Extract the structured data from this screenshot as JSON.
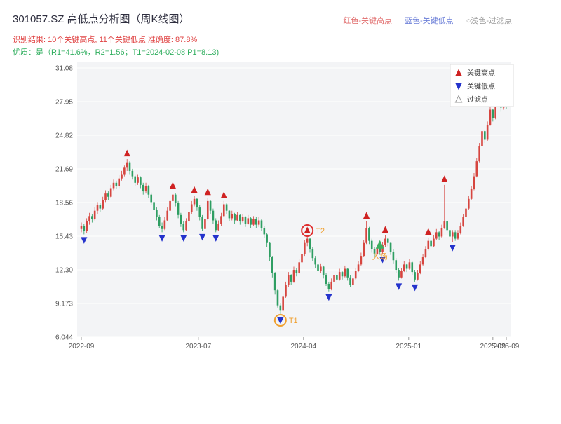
{
  "header": {
    "title": "301057.SZ 高低点分析图（周K线图）",
    "legend_right": [
      {
        "label": "红色-关键高点",
        "color": "#e06c6c"
      },
      {
        "label": "蓝色-关键低点",
        "color": "#6c7fd8"
      },
      {
        "label": "○浅色-过滤点",
        "color": "#999999"
      }
    ],
    "result_line": "识别结果: 10个关键高点, 11个关键低点  准确度: 87.8%",
    "quality_line": "优质：是（R1=41.6%，R2=1.56；T1=2024-02-08 P1=8.13)"
  },
  "chart_data": {
    "type": "candlestick",
    "symbol": "301057.SZ",
    "period": "weekly",
    "title": "301057.SZ 高低点分析图（周K线图）",
    "ylim": [
      6.044,
      31.08
    ],
    "y_ticks": [
      "31.08",
      "27.95",
      "24.82",
      "21.69",
      "18.56",
      "15.43",
      "12.30",
      "9.173",
      "6.044"
    ],
    "x_ticks": [
      {
        "label": "2022-09",
        "week": 0
      },
      {
        "label": "2023-07",
        "week": 43.5
      },
      {
        "label": "2024-04",
        "week": 82.6
      },
      {
        "label": "2025-01",
        "week": 121.7
      },
      {
        "label": "2025-09",
        "week": 153
      },
      {
        "label": "2025-09",
        "week": 158
      }
    ],
    "up_color": "#d6453f",
    "down_color": "#2e9e62",
    "key_high_color": "#cf2222",
    "key_low_color": "#2433cc",
    "grid": true,
    "legend_box": [
      {
        "label": "关键高点",
        "marker": "up-triangle",
        "color": "#cf2222"
      },
      {
        "label": "关键低点",
        "marker": "down-triangle",
        "color": "#2433cc"
      },
      {
        "label": "过滤点",
        "marker": "hollow-triangle",
        "color": "#999999"
      }
    ],
    "candles": [
      [
        16.1,
        16.7,
        15.8,
        16.4
      ],
      [
        16.4,
        16.6,
        15.6,
        15.9
      ],
      [
        15.9,
        17.1,
        15.7,
        16.8
      ],
      [
        16.8,
        17.6,
        16.5,
        17.3
      ],
      [
        17.3,
        17.5,
        16.7,
        17.0
      ],
      [
        17.0,
        18.1,
        16.9,
        17.8
      ],
      [
        17.8,
        18.6,
        17.5,
        18.3
      ],
      [
        18.3,
        18.5,
        17.7,
        18.0
      ],
      [
        18.0,
        19.1,
        17.9,
        18.8
      ],
      [
        18.8,
        19.7,
        18.6,
        19.4
      ],
      [
        19.4,
        19.6,
        18.8,
        19.1
      ],
      [
        19.1,
        20.2,
        19.0,
        19.9
      ],
      [
        19.9,
        20.7,
        19.7,
        20.4
      ],
      [
        20.4,
        20.6,
        19.8,
        20.1
      ],
      [
        20.1,
        21.1,
        19.9,
        20.8
      ],
      [
        20.8,
        21.5,
        20.6,
        21.2
      ],
      [
        21.2,
        22.0,
        21.0,
        21.8
      ],
      [
        21.8,
        22.6,
        21.5,
        22.3
      ],
      [
        22.3,
        22.4,
        21.2,
        21.5
      ],
      [
        21.5,
        21.7,
        20.7,
        21.0
      ],
      [
        21.0,
        21.2,
        20.1,
        20.4
      ],
      [
        20.4,
        21.2,
        20.2,
        20.9
      ],
      [
        20.9,
        21.0,
        19.9,
        20.2
      ],
      [
        20.2,
        20.4,
        19.3,
        19.6
      ],
      [
        19.6,
        20.4,
        19.4,
        20.1
      ],
      [
        20.1,
        20.2,
        19.0,
        19.3
      ],
      [
        19.3,
        19.5,
        18.3,
        18.6
      ],
      [
        18.6,
        18.8,
        17.6,
        17.9
      ],
      [
        17.9,
        18.1,
        16.9,
        17.2
      ],
      [
        17.2,
        17.4,
        16.2,
        16.4
      ],
      [
        16.4,
        16.7,
        15.8,
        16.1
      ],
      [
        16.1,
        17.2,
        16.0,
        16.9
      ],
      [
        16.9,
        18.1,
        16.8,
        17.8
      ],
      [
        17.8,
        19.0,
        17.6,
        18.7
      ],
      [
        18.7,
        19.6,
        18.5,
        19.3
      ],
      [
        19.3,
        19.4,
        18.2,
        18.5
      ],
      [
        18.5,
        18.7,
        17.1,
        17.4
      ],
      [
        17.4,
        17.6,
        16.3,
        16.6
      ],
      [
        16.6,
        16.8,
        15.8,
        16.0
      ],
      [
        16.0,
        17.1,
        15.9,
        16.8
      ],
      [
        16.8,
        18.0,
        16.7,
        17.7
      ],
      [
        17.7,
        18.7,
        17.5,
        18.4
      ],
      [
        18.4,
        19.2,
        18.2,
        18.9
      ],
      [
        18.9,
        19.0,
        17.8,
        18.1
      ],
      [
        18.1,
        18.3,
        16.9,
        17.2
      ],
      [
        17.2,
        17.4,
        15.9,
        16.1
      ],
      [
        16.1,
        17.3,
        16.0,
        17.0
      ],
      [
        17.0,
        19.0,
        16.9,
        18.7
      ],
      [
        18.7,
        18.8,
        17.5,
        17.8
      ],
      [
        17.8,
        18.0,
        16.6,
        16.9
      ],
      [
        16.9,
        17.1,
        15.8,
        16.0
      ],
      [
        16.0,
        16.9,
        15.9,
        16.6
      ],
      [
        16.6,
        17.6,
        16.4,
        17.3
      ],
      [
        17.3,
        18.7,
        17.2,
        18.4
      ],
      [
        18.4,
        18.5,
        17.5,
        17.8
      ],
      [
        17.8,
        17.9,
        16.8,
        17.1
      ],
      [
        17.1,
        17.8,
        16.9,
        17.5
      ],
      [
        17.5,
        17.6,
        16.6,
        16.9
      ],
      [
        16.9,
        17.7,
        16.8,
        17.4
      ],
      [
        17.4,
        17.5,
        16.5,
        16.8
      ],
      [
        16.8,
        17.5,
        16.7,
        17.2
      ],
      [
        17.2,
        17.3,
        16.3,
        16.6
      ],
      [
        16.6,
        17.4,
        16.5,
        17.1
      ],
      [
        17.1,
        17.2,
        16.2,
        16.5
      ],
      [
        16.5,
        17.3,
        16.4,
        17.0
      ],
      [
        17.0,
        17.2,
        16.2,
        16.5
      ],
      [
        16.5,
        17.2,
        16.3,
        16.9
      ],
      [
        16.9,
        17.0,
        15.9,
        16.2
      ],
      [
        16.2,
        16.4,
        15.3,
        15.6
      ],
      [
        15.6,
        15.7,
        14.4,
        14.8
      ],
      [
        14.8,
        14.9,
        13.1,
        13.5
      ],
      [
        13.5,
        13.6,
        11.6,
        12.0
      ],
      [
        12.0,
        12.1,
        10.0,
        10.4
      ],
      [
        10.4,
        10.5,
        8.8,
        9.0
      ],
      [
        9.0,
        9.2,
        8.13,
        8.5
      ],
      [
        8.5,
        10.1,
        8.4,
        9.8
      ],
      [
        9.8,
        11.2,
        9.7,
        10.9
      ],
      [
        10.9,
        12.1,
        10.7,
        11.8
      ],
      [
        11.8,
        11.9,
        10.9,
        11.2
      ],
      [
        11.2,
        12.6,
        11.1,
        12.3
      ],
      [
        12.3,
        12.5,
        11.7,
        12.0
      ],
      [
        12.0,
        13.3,
        11.9,
        13.0
      ],
      [
        13.0,
        14.1,
        12.8,
        13.8
      ],
      [
        13.8,
        15.1,
        13.6,
        14.8
      ],
      [
        14.8,
        15.43,
        14.5,
        15.2
      ],
      [
        15.2,
        15.3,
        13.9,
        14.2
      ],
      [
        14.2,
        14.4,
        13.1,
        13.4
      ],
      [
        13.4,
        13.6,
        12.5,
        12.8
      ],
      [
        12.8,
        13.0,
        11.9,
        12.2
      ],
      [
        12.2,
        12.9,
        12.0,
        12.6
      ],
      [
        12.6,
        12.7,
        11.5,
        11.8
      ],
      [
        11.8,
        12.0,
        10.8,
        11.0
      ],
      [
        11.0,
        11.2,
        10.3,
        10.5
      ],
      [
        10.5,
        11.5,
        10.4,
        11.2
      ],
      [
        11.2,
        12.1,
        11.1,
        11.8
      ],
      [
        11.8,
        11.9,
        11.1,
        11.4
      ],
      [
        11.4,
        12.4,
        11.3,
        12.1
      ],
      [
        12.1,
        12.2,
        11.4,
        11.7
      ],
      [
        11.7,
        12.7,
        11.6,
        12.4
      ],
      [
        12.4,
        12.5,
        11.3,
        11.6
      ],
      [
        11.6,
        11.8,
        10.7,
        10.9
      ],
      [
        10.9,
        11.8,
        10.8,
        11.5
      ],
      [
        11.5,
        12.5,
        11.4,
        12.2
      ],
      [
        12.2,
        13.1,
        12.1,
        12.8
      ],
      [
        12.8,
        13.9,
        12.7,
        13.6
      ],
      [
        13.6,
        15.1,
        13.5,
        14.8
      ],
      [
        14.8,
        16.8,
        14.7,
        16.2
      ],
      [
        16.2,
        16.3,
        14.7,
        15.0
      ],
      [
        15.0,
        15.2,
        13.9,
        14.2
      ],
      [
        14.2,
        14.4,
        13.5,
        13.8
      ],
      [
        13.8,
        14.7,
        13.7,
        14.4
      ],
      [
        14.4,
        14.5,
        13.7,
        14.0
      ],
      [
        14.0,
        14.9,
        13.8,
        14.6
      ],
      [
        14.6,
        15.5,
        14.4,
        15.2
      ],
      [
        15.2,
        15.3,
        14.5,
        14.8
      ],
      [
        14.8,
        14.9,
        13.7,
        14.0
      ],
      [
        14.0,
        14.2,
        12.9,
        13.2
      ],
      [
        13.2,
        13.4,
        12.0,
        12.3
      ],
      [
        12.3,
        12.5,
        11.3,
        11.6
      ],
      [
        11.6,
        12.5,
        11.5,
        12.2
      ],
      [
        12.2,
        13.1,
        12.1,
        12.8
      ],
      [
        12.8,
        12.9,
        12.1,
        12.4
      ],
      [
        12.4,
        13.3,
        12.3,
        13.0
      ],
      [
        13.0,
        13.1,
        11.8,
        12.1
      ],
      [
        12.1,
        12.3,
        11.2,
        11.4
      ],
      [
        11.4,
        12.3,
        11.3,
        12.0
      ],
      [
        12.0,
        13.1,
        11.9,
        12.8
      ],
      [
        12.8,
        13.8,
        12.7,
        13.5
      ],
      [
        13.5,
        14.5,
        13.4,
        14.2
      ],
      [
        14.2,
        15.3,
        14.1,
        15.0
      ],
      [
        15.0,
        15.1,
        14.2,
        14.5
      ],
      [
        14.5,
        15.5,
        14.4,
        15.2
      ],
      [
        15.2,
        16.1,
        15.1,
        15.8
      ],
      [
        15.8,
        15.9,
        15.1,
        15.4
      ],
      [
        15.4,
        16.5,
        15.3,
        16.2
      ],
      [
        16.2,
        20.2,
        16.1,
        16.8
      ],
      [
        16.8,
        16.9,
        15.7,
        16.0
      ],
      [
        16.0,
        16.1,
        15.1,
        15.4
      ],
      [
        15.4,
        16.0,
        14.9,
        15.8
      ],
      [
        15.8,
        16.0,
        15.0,
        15.2
      ],
      [
        15.2,
        16.0,
        15.1,
        15.7
      ],
      [
        15.7,
        16.7,
        15.6,
        16.4
      ],
      [
        16.4,
        17.5,
        16.3,
        17.2
      ],
      [
        17.2,
        18.3,
        17.1,
        18.0
      ],
      [
        18.0,
        19.2,
        17.9,
        18.9
      ],
      [
        18.9,
        20.1,
        18.8,
        19.8
      ],
      [
        19.8,
        21.3,
        19.7,
        21.0
      ],
      [
        21.0,
        22.7,
        20.9,
        22.4
      ],
      [
        22.4,
        24.1,
        22.3,
        23.8
      ],
      [
        23.8,
        25.5,
        23.7,
        25.2
      ],
      [
        25.2,
        25.3,
        24.1,
        24.4
      ],
      [
        24.4,
        26.1,
        24.3,
        25.8
      ],
      [
        25.8,
        27.5,
        25.7,
        27.2
      ],
      [
        27.2,
        27.3,
        26.1,
        26.4
      ],
      [
        26.4,
        28.3,
        26.3,
        28.0
      ],
      [
        28.0,
        29.5,
        27.9,
        28.8
      ],
      [
        28.8,
        28.9,
        27.0,
        27.4
      ],
      [
        27.4,
        28.5,
        27.2,
        28.2
      ],
      [
        28.2,
        28.4,
        27.3,
        27.9
      ]
    ],
    "key_high_weeks": [
      17,
      34,
      42,
      47,
      53,
      84,
      106,
      113,
      129,
      135
    ],
    "key_low_weeks": [
      1,
      30,
      38,
      45,
      50,
      74,
      92,
      112,
      118,
      124,
      138
    ],
    "annotations": [
      {
        "label": "T1",
        "week": 74,
        "price": 8.13,
        "type": "circle-low",
        "color": "#f0a030"
      },
      {
        "label": "T2",
        "week": 84,
        "price": 15.43,
        "type": "circle-high",
        "color": "#f0a030",
        "circle_color": "#e03030"
      },
      {
        "label": "入场",
        "week": 111,
        "price": 14.6,
        "type": "entry",
        "color": "#f0a030",
        "triangle_color": "#3cb060"
      }
    ]
  }
}
